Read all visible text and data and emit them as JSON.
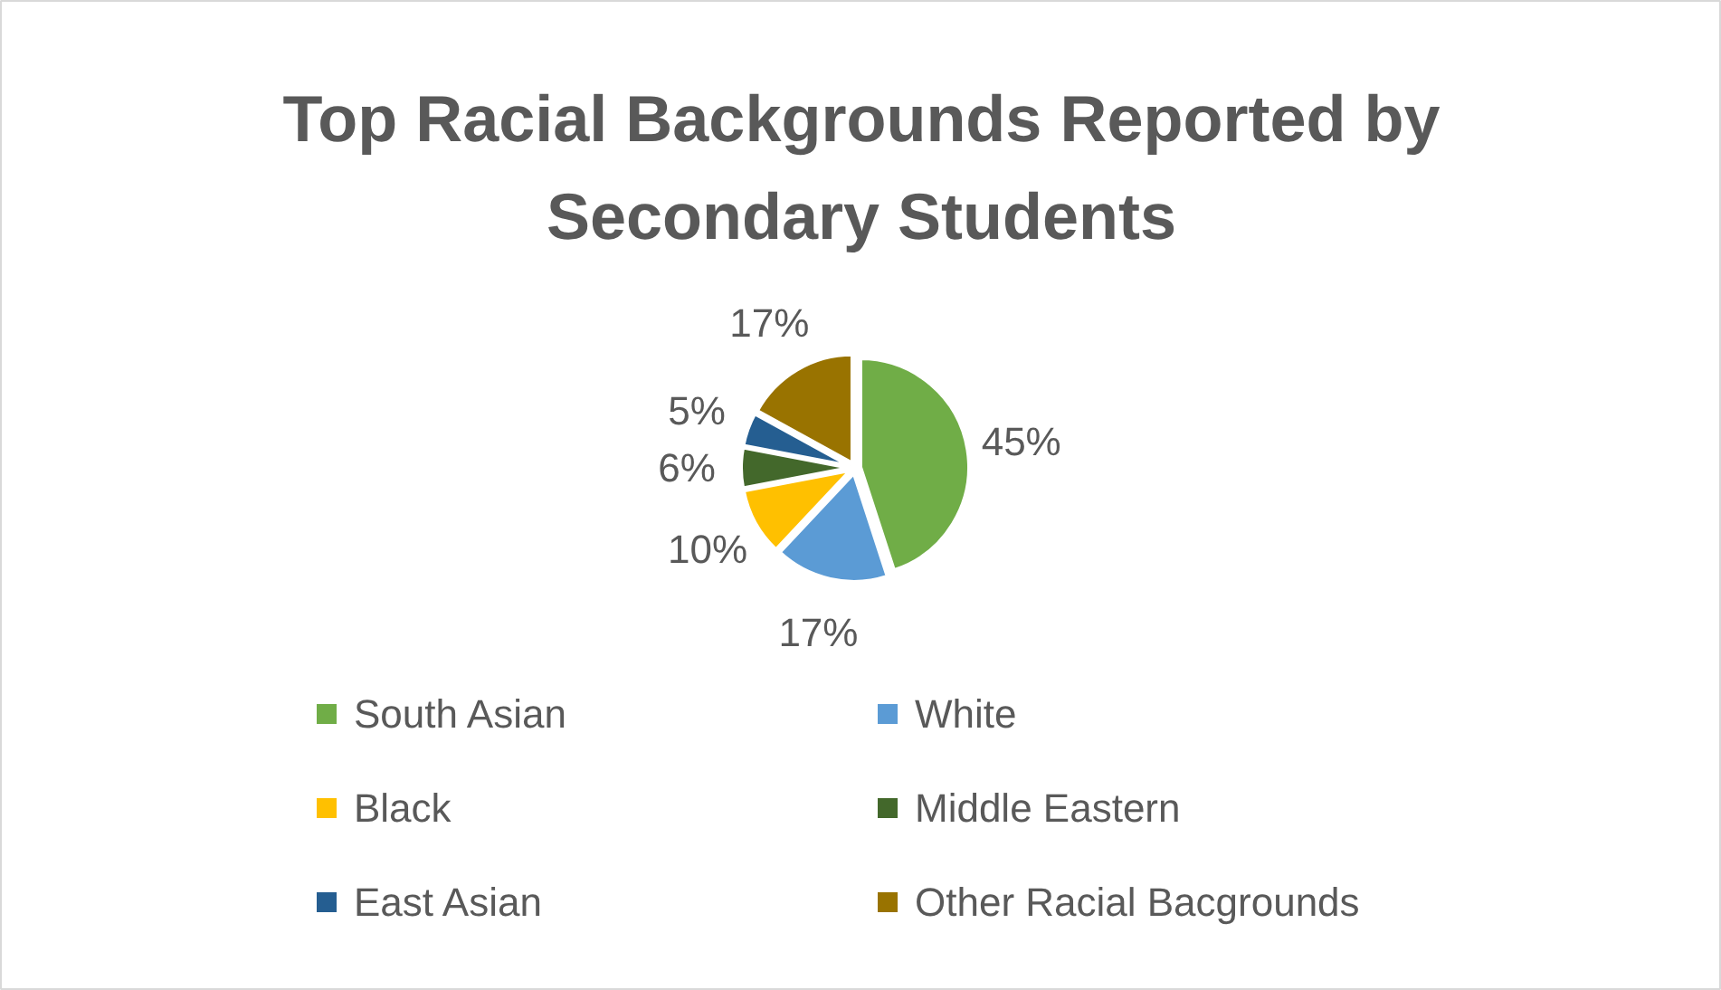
{
  "chart_data": {
    "type": "pie",
    "title": "Top Racial Backgrounds Reported by Secondary Students",
    "categories": [
      "South Asian",
      "White",
      "Black",
      "Middle Eastern",
      "East Asian",
      "Other Racial Bacgrounds"
    ],
    "values": [
      45,
      17,
      10,
      6,
      5,
      17
    ],
    "value_labels": [
      "45%",
      "17%",
      "10%",
      "6%",
      "5%",
      "17%"
    ],
    "colors": [
      "#70ad47",
      "#5b9bd5",
      "#ffc000",
      "#43682b",
      "#255e91",
      "#997300"
    ],
    "legend": "bottom"
  }
}
